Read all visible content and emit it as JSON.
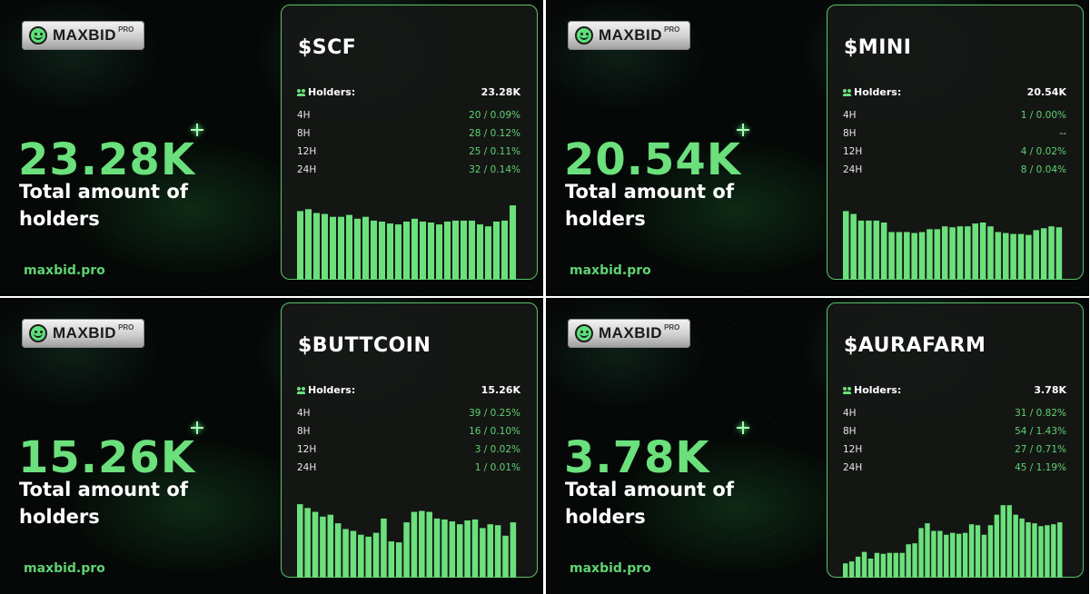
{
  "brand": {
    "logo_text": "MAXBID",
    "logo_badge": "PRO",
    "site": "maxbid.pro",
    "accent": "#6be07c",
    "border": "#58c468"
  },
  "caption": "Total amount of holders",
  "holders_label": "Holders:",
  "panels": [
    {
      "ticker": "$SCF",
      "total": "23.28K",
      "holders": "23.28K",
      "periods": [
        {
          "label": "4H",
          "value": "20 / 0.09%"
        },
        {
          "label": "8H",
          "value": "28 / 0.12%"
        },
        {
          "label": "12H",
          "value": "25 / 0.11%"
        },
        {
          "label": "24H",
          "value": "32 / 0.14%"
        }
      ]
    },
    {
      "ticker": "$MINI",
      "total": "20.54K",
      "holders": "20.54K",
      "periods": [
        {
          "label": "4H",
          "value": "1 / 0.00%"
        },
        {
          "label": "8H",
          "value": "--"
        },
        {
          "label": "12H",
          "value": "4 / 0.02%"
        },
        {
          "label": "24H",
          "value": "8 / 0.04%"
        }
      ]
    },
    {
      "ticker": "$BUTTCOIN",
      "total": "15.26K",
      "holders": "15.26K",
      "periods": [
        {
          "label": "4H",
          "value": "39 / 0.25%"
        },
        {
          "label": "8H",
          "value": "16 / 0.10%"
        },
        {
          "label": "12H",
          "value": "3 / 0.02%"
        },
        {
          "label": "24H",
          "value": "1 / 0.01%"
        }
      ]
    },
    {
      "ticker": "$AURAFARM",
      "total": "3.78K",
      "holders": "3.78K",
      "periods": [
        {
          "label": "4H",
          "value": "31 / 0.82%"
        },
        {
          "label": "8H",
          "value": "54 / 1.43%"
        },
        {
          "label": "12H",
          "value": "27 / 0.71%"
        },
        {
          "label": "24H",
          "value": "45 / 1.19%"
        }
      ]
    }
  ],
  "chart_data": [
    {
      "type": "bar",
      "title": "$SCF",
      "ylim": [
        0,
        80
      ],
      "values": [
        72,
        74,
        70,
        69,
        66,
        66,
        68,
        64,
        66,
        62,
        61,
        59,
        58,
        61,
        64,
        61,
        60,
        58,
        61,
        62,
        62,
        62,
        58,
        56,
        61,
        62,
        78
      ]
    },
    {
      "type": "bar",
      "title": "$MINI",
      "ylim": [
        0,
        80
      ],
      "values": [
        72,
        69,
        62,
        62,
        62,
        60,
        50,
        50,
        50,
        49,
        50,
        53,
        53,
        56,
        55,
        56,
        56,
        59,
        60,
        56,
        50,
        49,
        48,
        48,
        47,
        52,
        54,
        56,
        55
      ]
    },
    {
      "type": "bar",
      "title": "$BUTTCOIN",
      "ylim": [
        0,
        80
      ],
      "values": [
        77,
        73,
        69,
        64,
        66,
        57,
        51,
        49,
        45,
        43,
        47,
        62,
        38,
        37,
        58,
        69,
        70,
        69,
        62,
        61,
        59,
        56,
        60,
        61,
        52,
        56,
        55,
        44,
        58
      ]
    },
    {
      "type": "bar",
      "title": "$AURAFARM",
      "ylim": [
        0,
        80
      ],
      "values": [
        15,
        17,
        22,
        27,
        20,
        26,
        25,
        26,
        26,
        26,
        35,
        36,
        52,
        57,
        49,
        49,
        45,
        47,
        46,
        47,
        56,
        55,
        45,
        55,
        66,
        76,
        76,
        66,
        62,
        58,
        57,
        54,
        55,
        56,
        58
      ]
    }
  ]
}
